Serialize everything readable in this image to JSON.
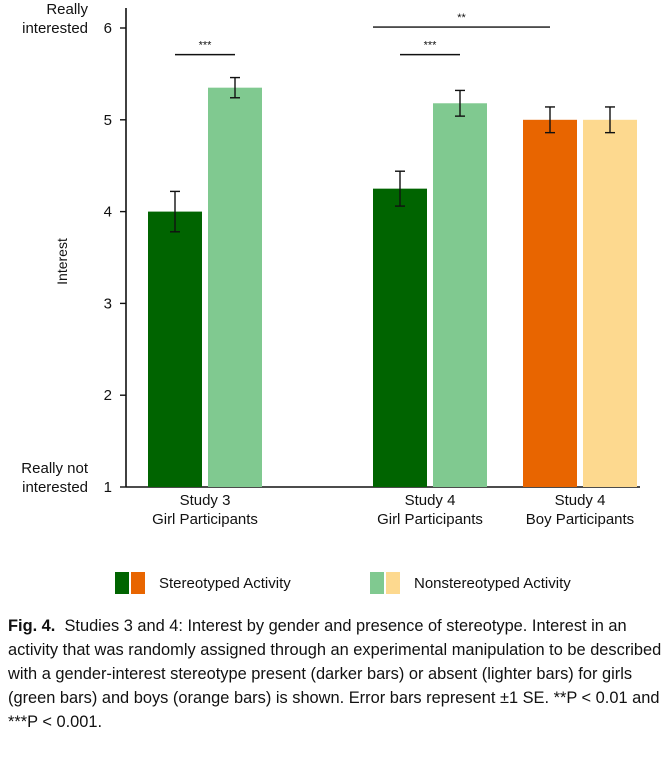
{
  "chart_data": {
    "type": "bar",
    "ylabel": "Interest",
    "ylim": [
      1,
      6.2
    ],
    "yticks": [
      1,
      2,
      3,
      4,
      5,
      6
    ],
    "ytick_prefix": {
      "1": "Really not\ninterested",
      "6": "Really\ninterested"
    },
    "groups": [
      {
        "label": "Study 3\nGirl Participants",
        "bars": [
          {
            "series": "Stereotyped Activity",
            "value": 4.0,
            "se": 0.22,
            "color": "#006400"
          },
          {
            "series": "Nonstereotyped Activity",
            "value": 5.35,
            "se": 0.11,
            "color": "#80c990"
          }
        ]
      },
      {
        "label": "Study 4\nGirl Participants",
        "bars": [
          {
            "series": "Stereotyped Activity",
            "value": 4.25,
            "se": 0.19,
            "color": "#006400"
          },
          {
            "series": "Nonstereotyped Activity",
            "value": 5.18,
            "se": 0.14,
            "color": "#80c990"
          }
        ]
      },
      {
        "label": "Study 4\nBoy Participants",
        "bars": [
          {
            "series": "Stereotyped Activity",
            "value": 5.0,
            "se": 0.14,
            "color": "#e86500"
          },
          {
            "series": "Nonstereotyped Activity",
            "value": 5.0,
            "se": 0.14,
            "color": "#fdd98f"
          }
        ]
      }
    ],
    "significance": [
      {
        "from": [
          0,
          0
        ],
        "to": [
          0,
          1
        ],
        "label": "***",
        "level": 5.71
      },
      {
        "from": [
          1,
          0
        ],
        "to": [
          1,
          1
        ],
        "label": "***",
        "level": 5.71
      },
      {
        "from": [
          1,
          0
        ],
        "to": [
          2,
          0
        ],
        "label": "**",
        "level": 6.01
      }
    ],
    "legend": [
      {
        "label": "Stereotyped Activity",
        "colors": [
          "#006400",
          "#e86500"
        ]
      },
      {
        "label": "Nonstereotyped Activity",
        "colors": [
          "#80c990",
          "#fdd98f"
        ]
      }
    ]
  },
  "caption": {
    "fig_label": "Fig. 4.",
    "text": "Studies 3 and 4: Interest by gender and presence of stereotype. Interest in an activity that was randomly assigned through an experimental manipulation to be described with a gender-interest stereotype present (darker bars) or absent (lighter bars) for girls (green bars) and boys (orange bars) is shown. Error bars represent ±1 SE. **P < 0.01 and ***P < 0.001."
  }
}
